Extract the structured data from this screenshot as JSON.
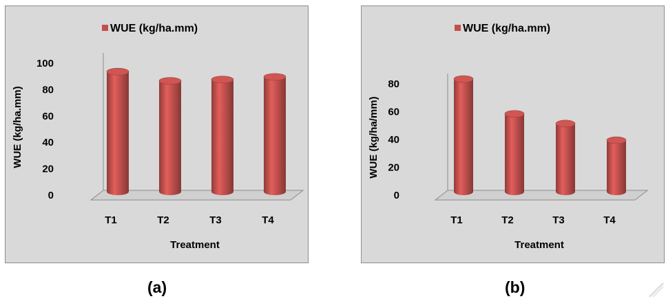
{
  "captions": {
    "a": "(a)",
    "b": "(b)"
  },
  "chart_data": [
    {
      "type": "bar",
      "legend": "WUE (kg/ha.mm)",
      "legend_position": "top",
      "categories": [
        "T1",
        "T2",
        "T3",
        "T4"
      ],
      "values": [
        90,
        83,
        84,
        86
      ],
      "xlabel": "Treatment",
      "ylabel": "WUE (kg/ha.mm)",
      "ylim": [
        0,
        100
      ],
      "yticks": [
        0,
        20,
        40,
        60,
        80,
        100
      ],
      "grid": false,
      "bar_color": "#c0504d"
    },
    {
      "type": "bar",
      "legend": "WUE (kg/ha.mm)",
      "legend_position": "top",
      "categories": [
        "T1",
        "T2",
        "T3",
        "T4"
      ],
      "values": [
        80,
        55,
        48,
        36
      ],
      "xlabel": "Treatment",
      "ylabel": "WUE (kg/ha/mm)",
      "ylim": [
        0,
        80
      ],
      "yticks": [
        0,
        20,
        40,
        60,
        80
      ],
      "grid": false,
      "bar_color": "#c0504d"
    }
  ]
}
